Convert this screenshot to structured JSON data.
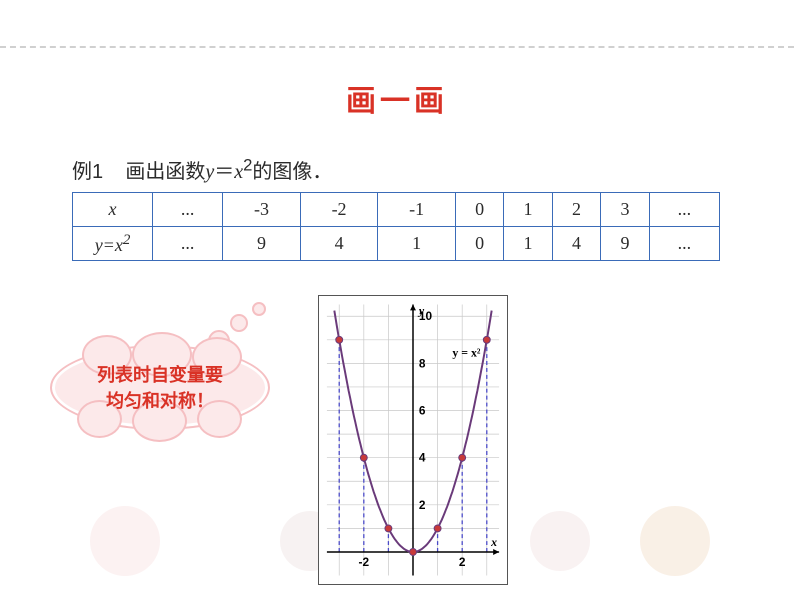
{
  "title": "画一画",
  "example": {
    "label": "例1",
    "text_parts": {
      "prefix": "画出函数",
      "var_y": "y",
      "equals": "＝",
      "var_x": "x",
      "exponent": "2",
      "suffix": "的图像．"
    }
  },
  "table": {
    "row1": {
      "header": "x",
      "cells": [
        "...",
        "-3",
        "-2",
        "-1",
        "0",
        "1",
        "2",
        "3",
        "..."
      ]
    },
    "row2": {
      "header_y": "y=x",
      "header_exp": "2",
      "cells": [
        "...",
        "9",
        "4",
        "1",
        "0",
        "1",
        "4",
        "9",
        "..."
      ]
    },
    "border_color": "#3a6bb8"
  },
  "cloud": {
    "line1": "列表时自变量要",
    "line2": "均匀和对称！",
    "bg_color": "#fce9ea",
    "border_color": "#f5bfc2",
    "text_color": "#d93226"
  },
  "chart": {
    "type": "scatter-line",
    "xlim": [
      -3.5,
      3.5
    ],
    "ylim": [
      -1,
      10.5
    ],
    "x_ticks": [
      -2,
      2
    ],
    "y_ticks": [
      2,
      4,
      6,
      8,
      10
    ],
    "grid_color": "#c8c8c8",
    "axis_color": "#000000",
    "curve_color": "#6a3a7a",
    "point_fill": "#c83a3a",
    "point_stroke": "#6a3a7a",
    "dash_color": "#4a4ac8",
    "equation_label": "y = x²",
    "x_label": "x",
    "y_label": "y",
    "label_fontsize": 12,
    "points": [
      {
        "x": -3,
        "y": 9
      },
      {
        "x": -2,
        "y": 4
      },
      {
        "x": -1,
        "y": 1
      },
      {
        "x": 0,
        "y": 0
      },
      {
        "x": 1,
        "y": 1
      },
      {
        "x": 2,
        "y": 4
      },
      {
        "x": 3,
        "y": 9
      }
    ],
    "dashed_lines": [
      {
        "x": -3,
        "y": 9
      },
      {
        "x": -2,
        "y": 4
      },
      {
        "x": -1,
        "y": 1
      },
      {
        "x": 1,
        "y": 1
      },
      {
        "x": 2,
        "y": 4
      },
      {
        "x": 3,
        "y": 9
      }
    ]
  }
}
